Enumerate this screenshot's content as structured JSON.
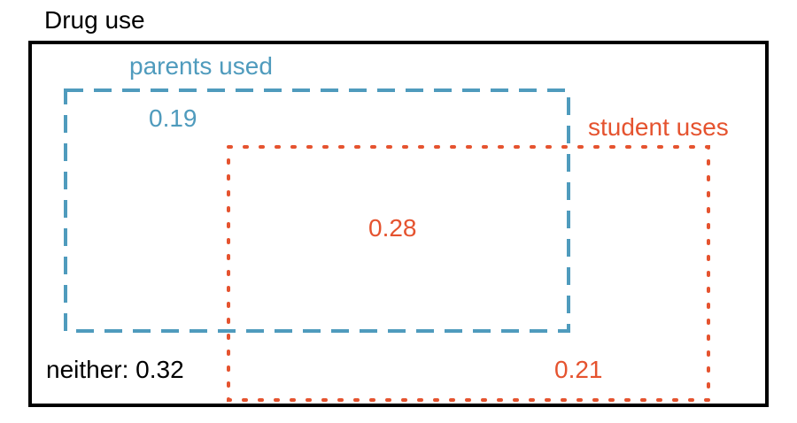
{
  "title": "Drug use",
  "sets": {
    "parents": {
      "label": "parents used",
      "only_value": "0.19",
      "color": "#4f9bbd"
    },
    "student": {
      "label": "student uses",
      "only_value": "0.21",
      "color": "#e5532f"
    }
  },
  "intersection": {
    "value": "0.28",
    "color": "#e5532f"
  },
  "neither": {
    "label": "neither: 0.32",
    "color": "#000000"
  }
}
